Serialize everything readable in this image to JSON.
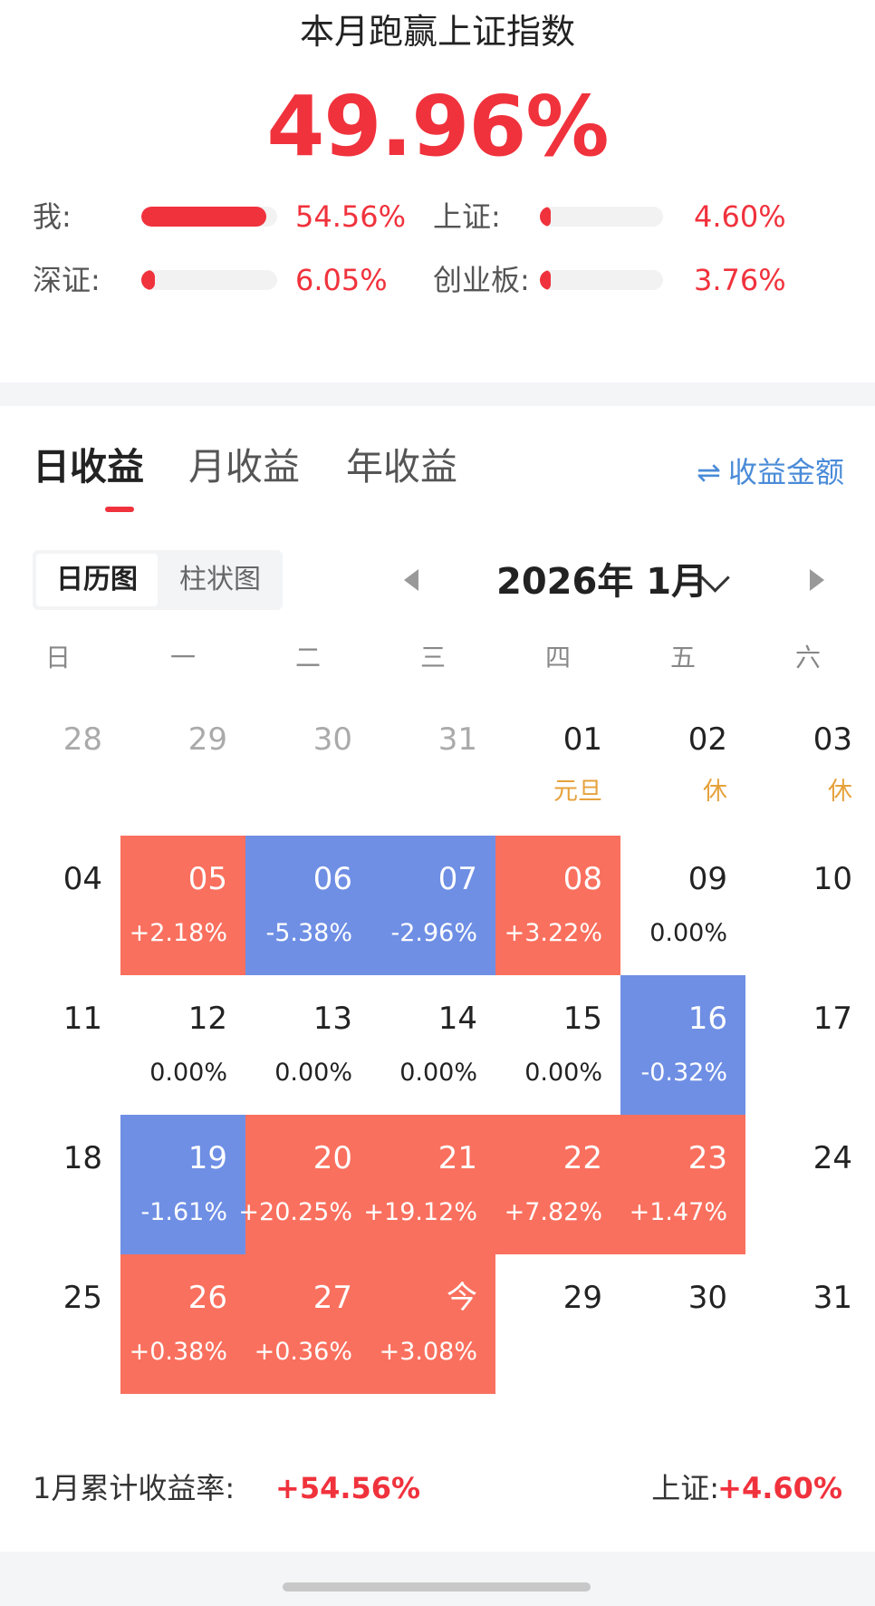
{
  "header": {
    "headline": "本月跑赢上证指数",
    "value": "49.96%"
  },
  "comparison": [
    {
      "label": "我:",
      "value": "54.56%",
      "fill": 0.92
    },
    {
      "label": "上证:",
      "value": "4.60%",
      "fill": 0.08
    },
    {
      "label": "深证:",
      "value": "6.05%",
      "fill": 0.1
    },
    {
      "label": "创业板:",
      "value": "3.76%",
      "fill": 0.07
    }
  ],
  "tabs": [
    "日收益",
    "月收益",
    "年收益"
  ],
  "amount_toggle": {
    "icon": "swap-icon",
    "label": "收益金额"
  },
  "view_switch": {
    "active": "日历图",
    "inactive": "柱状图"
  },
  "month": {
    "title": "2026年 1月"
  },
  "weekdays": [
    "日",
    "一",
    "二",
    "三",
    "四",
    "五",
    "六"
  ],
  "colors": {
    "up": "#fa705e",
    "down": "#6f8fe5",
    "accent": "#f0323c",
    "holiday": "#e6a23c",
    "link": "#4a8bd8"
  },
  "weeks": [
    [
      {
        "day": "28",
        "other": true
      },
      {
        "day": "29",
        "other": true
      },
      {
        "day": "30",
        "other": true
      },
      {
        "day": "31",
        "other": true
      },
      {
        "day": "01",
        "note": "元旦"
      },
      {
        "day": "02",
        "note": "休"
      },
      {
        "day": "03",
        "note": "休"
      }
    ],
    [
      {
        "day": "04"
      },
      {
        "day": "05",
        "value": "+2.18%",
        "dir": "up"
      },
      {
        "day": "06",
        "value": "-5.38%",
        "dir": "down"
      },
      {
        "day": "07",
        "value": "-2.96%",
        "dir": "down"
      },
      {
        "day": "08",
        "value": "+3.22%",
        "dir": "up"
      },
      {
        "day": "09",
        "value": "0.00%"
      },
      {
        "day": "10"
      }
    ],
    [
      {
        "day": "11"
      },
      {
        "day": "12",
        "value": "0.00%"
      },
      {
        "day": "13",
        "value": "0.00%"
      },
      {
        "day": "14",
        "value": "0.00%"
      },
      {
        "day": "15",
        "value": "0.00%"
      },
      {
        "day": "16",
        "value": "-0.32%",
        "dir": "down"
      },
      {
        "day": "17"
      }
    ],
    [
      {
        "day": "18"
      },
      {
        "day": "19",
        "value": "-1.61%",
        "dir": "down"
      },
      {
        "day": "20",
        "value": "+20.25%",
        "dir": "up"
      },
      {
        "day": "21",
        "value": "+19.12%",
        "dir": "up"
      },
      {
        "day": "22",
        "value": "+7.82%",
        "dir": "up"
      },
      {
        "day": "23",
        "value": "+1.47%",
        "dir": "up"
      },
      {
        "day": "24"
      }
    ],
    [
      {
        "day": "25"
      },
      {
        "day": "26",
        "value": "+0.38%",
        "dir": "up"
      },
      {
        "day": "27",
        "value": "+0.36%",
        "dir": "up"
      },
      {
        "day": "今",
        "value": "+3.08%",
        "dir": "up"
      },
      {
        "day": "29"
      },
      {
        "day": "30"
      },
      {
        "day": "31"
      }
    ]
  ],
  "summary": {
    "label": "1月累计收益率:",
    "value": "+54.56%",
    "index_label": "上证:",
    "index_value": "+4.60%"
  }
}
